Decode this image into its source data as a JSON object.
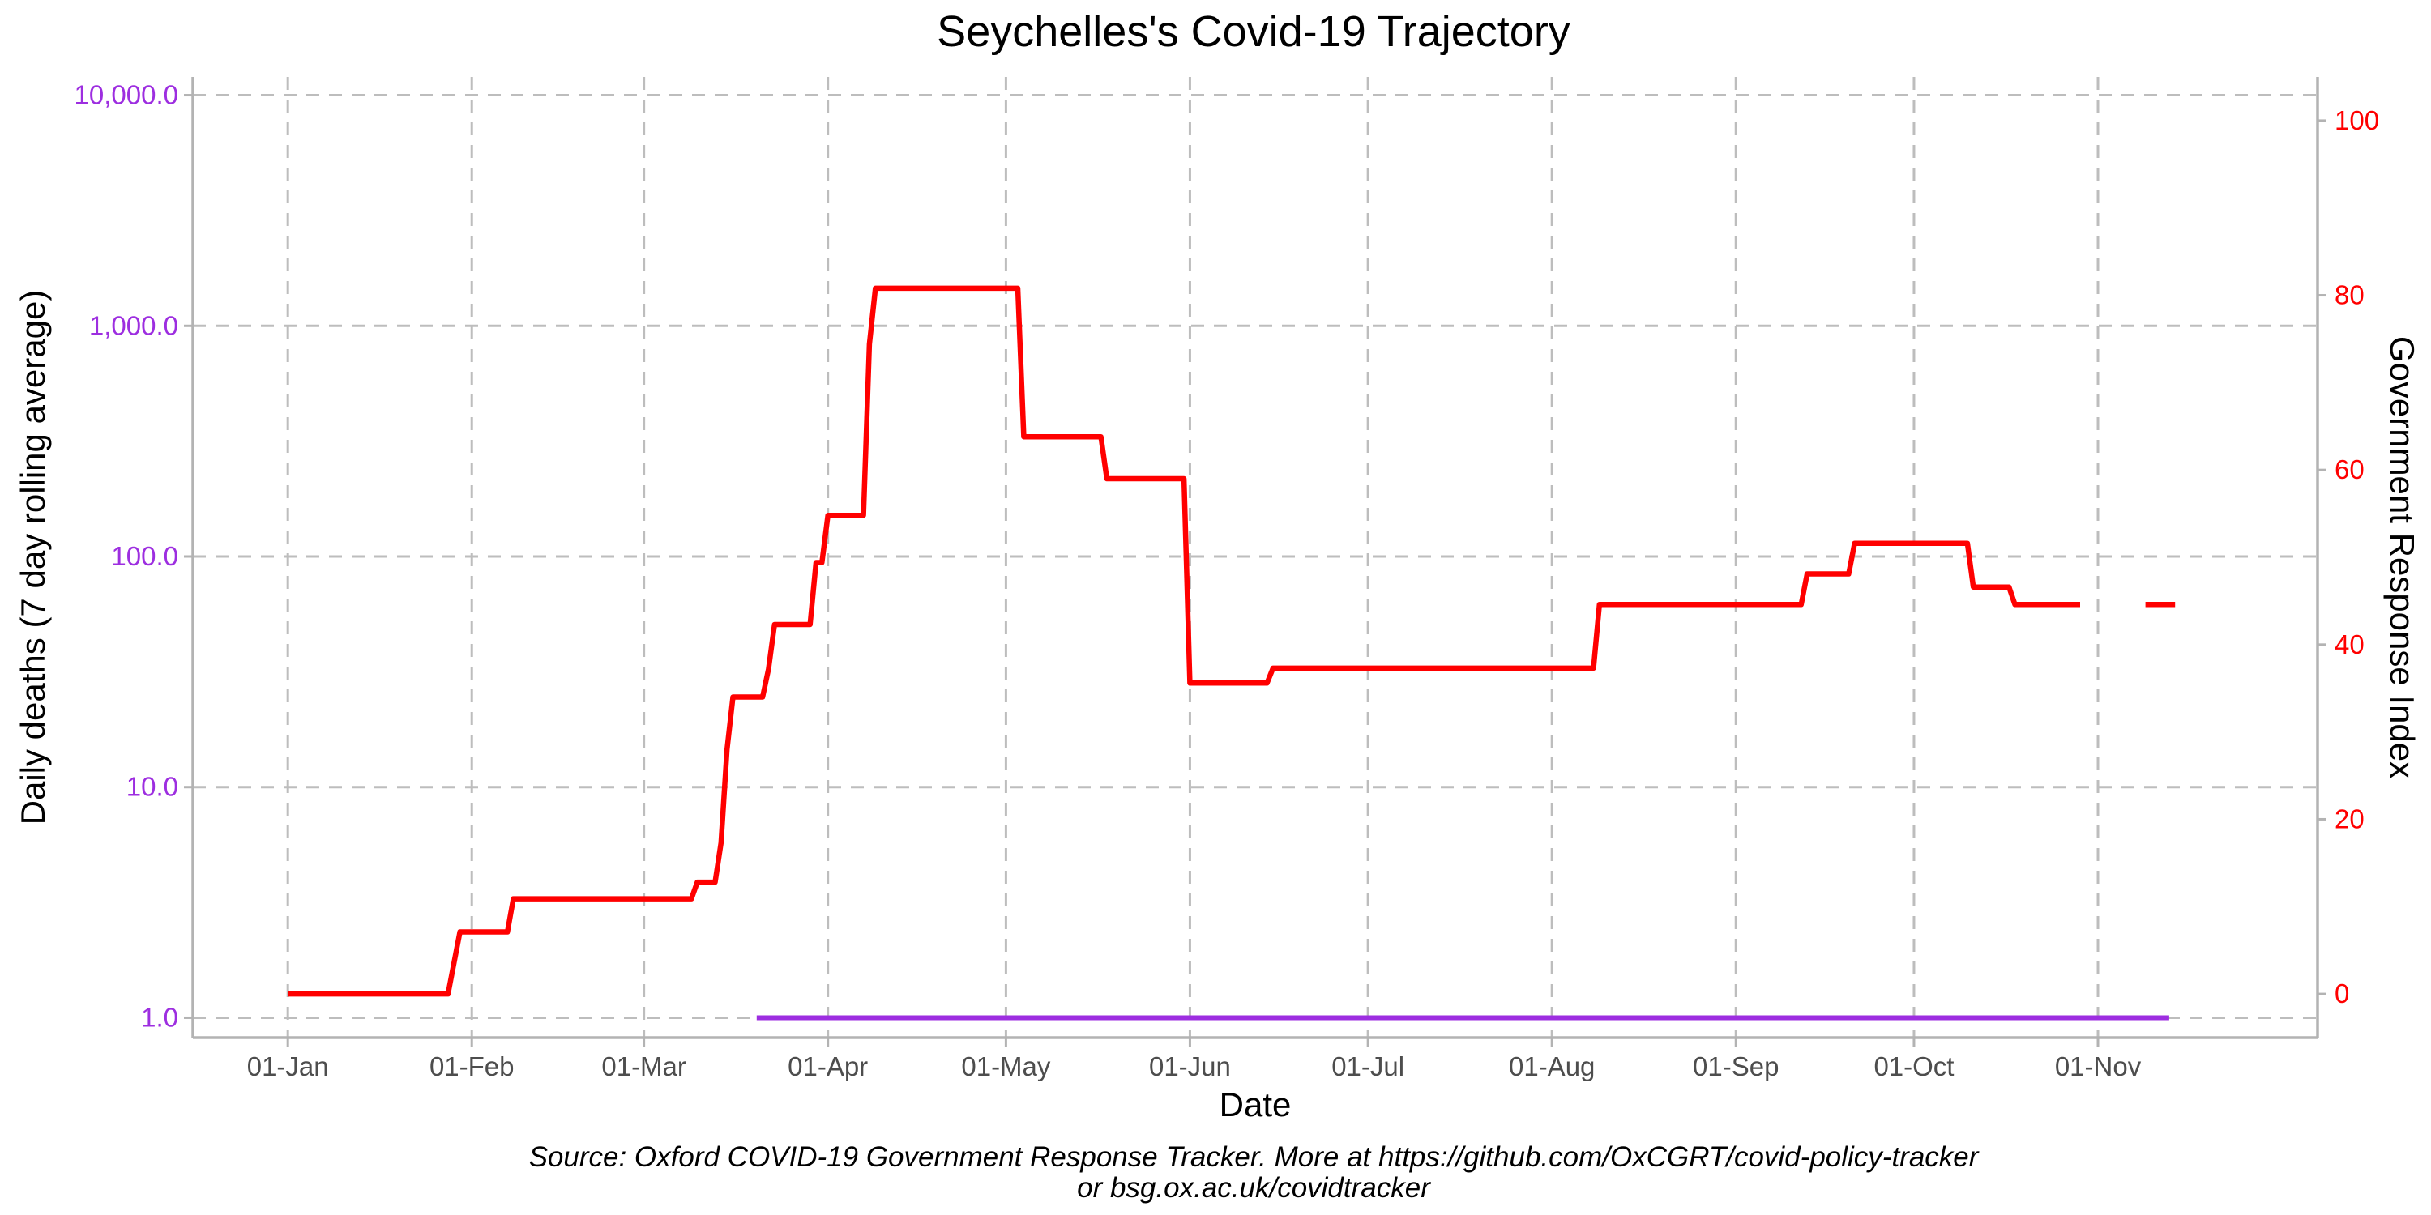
{
  "colors": {
    "deaths": "#9d2ee0",
    "response": "#ff0000",
    "grid": "#bdbdbd",
    "axis": "#b3b3b3"
  },
  "chart_data": {
    "type": "line",
    "title": "Seychelles's Covid-19 Trajectory",
    "xlabel": "Date",
    "ylabel_left": "Daily deaths (7 day rolling average)",
    "ylabel_right": "Government Response Index",
    "caption_line1": "Source: Oxford COVID-19 Government Response Tracker. More at https://github.com/OxCGRT/covid-policy-tracker",
    "caption_line2": "or bsg.ox.ac.uk/covidtracker",
    "x_ticks": [
      {
        "date": "2020-01-01",
        "label": "01-Jan"
      },
      {
        "date": "2020-02-01",
        "label": "01-Feb"
      },
      {
        "date": "2020-03-01",
        "label": "01-Mar"
      },
      {
        "date": "2020-04-01",
        "label": "01-Apr"
      },
      {
        "date": "2020-05-01",
        "label": "01-May"
      },
      {
        "date": "2020-06-01",
        "label": "01-Jun"
      },
      {
        "date": "2020-07-01",
        "label": "01-Jul"
      },
      {
        "date": "2020-08-01",
        "label": "01-Aug"
      },
      {
        "date": "2020-09-01",
        "label": "01-Sep"
      },
      {
        "date": "2020-10-01",
        "label": "01-Oct"
      },
      {
        "date": "2020-11-01",
        "label": "01-Nov"
      }
    ],
    "xlim": [
      "2019-12-16",
      "2020-12-08"
    ],
    "y_left": {
      "scale": "log10",
      "lim": [
        0.82,
        12000
      ],
      "ticks": [
        1,
        10,
        100,
        1000,
        10000
      ],
      "tick_labels": [
        "1.0",
        "10.0",
        "100.0",
        "1,000.0",
        "10,000.0"
      ]
    },
    "y_right": {
      "scale": "linear",
      "lim": [
        -5,
        105
      ],
      "ticks": [
        0,
        20,
        40,
        60,
        80,
        100
      ],
      "tick_labels": [
        "0",
        "20",
        "40",
        "60",
        "80",
        "100"
      ]
    },
    "grid": true,
    "series": [
      {
        "name": "Daily deaths (7 day rolling average)",
        "axis": "left",
        "style": "line",
        "segments": [
          [
            {
              "x": "2020-03-20",
              "y": 1
            },
            {
              "x": "2020-11-13",
              "y": 1
            }
          ]
        ]
      },
      {
        "name": "Government Response Index",
        "axis": "right",
        "style": "step",
        "segments": [
          [
            {
              "x": "2020-01-01",
              "y": 0
            },
            {
              "x": "2020-01-28",
              "y": 0
            },
            {
              "x": "2020-01-30",
              "y": 7.1
            },
            {
              "x": "2020-02-07",
              "y": 7.1
            },
            {
              "x": "2020-02-08",
              "y": 10.9
            },
            {
              "x": "2020-03-09",
              "y": 10.9
            },
            {
              "x": "2020-03-10",
              "y": 12.8
            },
            {
              "x": "2020-03-13",
              "y": 12.8
            },
            {
              "x": "2020-03-14",
              "y": 17.3
            },
            {
              "x": "2020-03-15",
              "y": 28
            },
            {
              "x": "2020-03-16",
              "y": 34
            },
            {
              "x": "2020-03-21",
              "y": 34
            },
            {
              "x": "2020-03-22",
              "y": 37.2
            },
            {
              "x": "2020-03-23",
              "y": 42.3
            },
            {
              "x": "2020-03-29",
              "y": 42.3
            },
            {
              "x": "2020-03-30",
              "y": 49.4
            },
            {
              "x": "2020-03-31",
              "y": 49.4
            },
            {
              "x": "2020-04-01",
              "y": 54.8
            },
            {
              "x": "2020-04-07",
              "y": 54.8
            },
            {
              "x": "2020-04-08",
              "y": 74.4
            },
            {
              "x": "2020-04-09",
              "y": 80.8
            },
            {
              "x": "2020-05-03",
              "y": 80.8
            },
            {
              "x": "2020-05-04",
              "y": 63.8
            },
            {
              "x": "2020-05-17",
              "y": 63.8
            },
            {
              "x": "2020-05-18",
              "y": 59.0
            },
            {
              "x": "2020-05-31",
              "y": 59.0
            },
            {
              "x": "2020-06-01",
              "y": 35.6
            },
            {
              "x": "2020-06-14",
              "y": 35.6
            },
            {
              "x": "2020-06-15",
              "y": 37.3
            },
            {
              "x": "2020-08-08",
              "y": 37.3
            },
            {
              "x": "2020-08-09",
              "y": 44.6
            },
            {
              "x": "2020-09-12",
              "y": 44.6
            },
            {
              "x": "2020-09-13",
              "y": 48.1
            },
            {
              "x": "2020-09-20",
              "y": 48.1
            },
            {
              "x": "2020-09-21",
              "y": 51.6
            },
            {
              "x": "2020-10-10",
              "y": 51.6
            },
            {
              "x": "2020-10-11",
              "y": 46.6
            },
            {
              "x": "2020-10-17",
              "y": 46.6
            },
            {
              "x": "2020-10-18",
              "y": 44.6
            },
            {
              "x": "2020-10-29",
              "y": 44.6
            }
          ],
          [
            {
              "x": "2020-11-09",
              "y": 44.6
            },
            {
              "x": "2020-11-14",
              "y": 44.6
            }
          ]
        ]
      }
    ]
  }
}
